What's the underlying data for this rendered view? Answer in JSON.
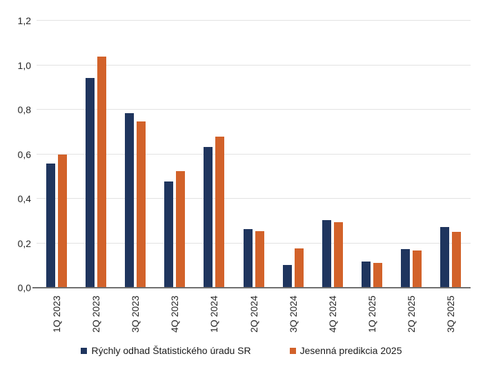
{
  "chart_data": {
    "type": "bar",
    "title": "",
    "xlabel": "",
    "ylabel": "",
    "categories": [
      "1Q 2023",
      "2Q 2023",
      "3Q 2023",
      "4Q 2023",
      "1Q 2024",
      "2Q 2024",
      "3Q 2024",
      "4Q 2024",
      "1Q 2025",
      "2Q 2025",
      "3Q 2025"
    ],
    "series": [
      {
        "name": "Rýchly odhad Štatistického úradu SR",
        "color": "#1F355E",
        "values": [
          0.555,
          0.94,
          0.78,
          0.475,
          0.63,
          0.26,
          0.1,
          0.3,
          0.115,
          0.17,
          0.27
        ]
      },
      {
        "name": "Jesenná predikcia 2025",
        "color": "#D2622A",
        "values": [
          0.595,
          1.035,
          0.745,
          0.52,
          0.675,
          0.252,
          0.175,
          0.29,
          0.11,
          0.165,
          0.247
        ]
      }
    ],
    "ylim": [
      0,
      1.2
    ],
    "yticks": [
      0,
      0.2,
      0.4,
      0.6,
      0.8,
      1.0,
      1.2
    ],
    "ytick_labels": [
      "0,0",
      "0,2",
      "0,4",
      "0,6",
      "0,8",
      "1,0",
      "1,2"
    ],
    "grid": true,
    "legend_position": "bottom",
    "x_label_rotation": -90
  },
  "style": {
    "gridline_color": "#E2E2E2",
    "axis_line_color": "#6E6E6E",
    "text_color": "#262626",
    "background": "#FFFFFF"
  }
}
